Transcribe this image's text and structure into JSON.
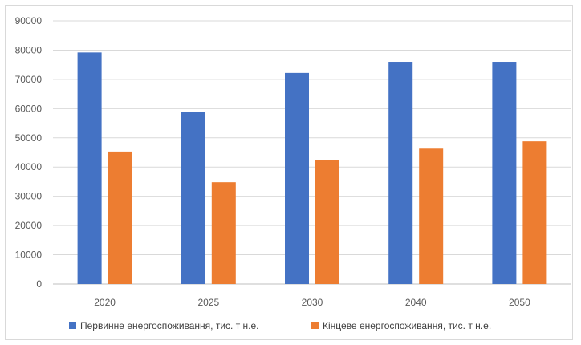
{
  "chart_data": {
    "type": "bar",
    "categories": [
      "2020",
      "2025",
      "2030",
      "2040",
      "2050"
    ],
    "series": [
      {
        "name": "Первинне енергоспоживання, тис. т н.е.",
        "color": "#4472c4",
        "values": [
          79200,
          58800,
          72200,
          76000,
          76000
        ]
      },
      {
        "name": "Кінцеве енергоспоживання, тис. т н.е.",
        "color": "#ed7d31",
        "values": [
          45300,
          34800,
          42300,
          46300,
          48800
        ]
      }
    ],
    "ylim": [
      0,
      90000
    ],
    "yticks": [
      0,
      10000,
      20000,
      30000,
      40000,
      50000,
      60000,
      70000,
      80000,
      90000
    ],
    "ytick_labels": [
      "0",
      "10000",
      "20000",
      "30000",
      "40000",
      "50000",
      "60000",
      "70000",
      "80000",
      "90000"
    ],
    "grid": true,
    "legend_position": "bottom",
    "title": "",
    "xlabel": "",
    "ylabel": ""
  }
}
